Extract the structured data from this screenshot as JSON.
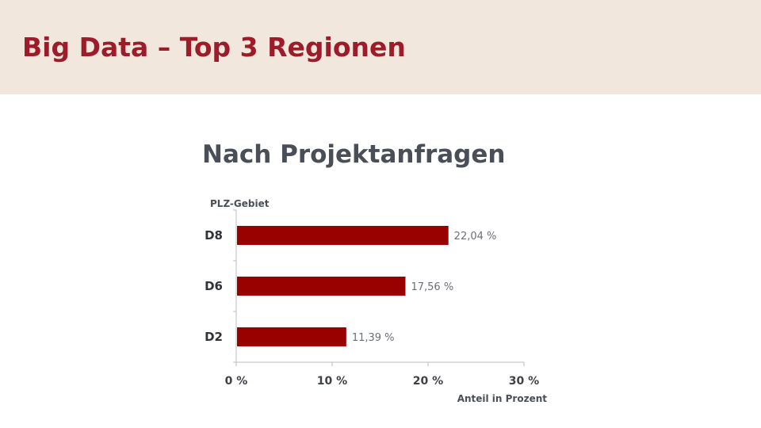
{
  "header": {
    "title": "Big Data – Top 3 Regionen"
  },
  "colors": {
    "header_background": "#f1e7dc",
    "header_text": "#9c1c2a",
    "bar": "#990000",
    "title_text": "#4a4f57",
    "axis": "#bdbdbd"
  },
  "chart_data": {
    "type": "bar",
    "orientation": "horizontal",
    "title": "Nach Projektanfragen",
    "ylabel": "PLZ-Gebiet",
    "xlabel": "Anteil in Prozent",
    "categories": [
      "D8",
      "D6",
      "D2"
    ],
    "values": [
      22.04,
      17.56,
      11.39
    ],
    "value_labels": [
      "22,04 %",
      "17,56 %",
      "11,39 %"
    ],
    "xlim": [
      0,
      30
    ],
    "xticks": [
      0,
      10,
      20,
      30
    ],
    "xtick_labels": [
      "0 %",
      "10 %",
      "20 %",
      "30 %"
    ],
    "grid": false,
    "legend": "none"
  }
}
